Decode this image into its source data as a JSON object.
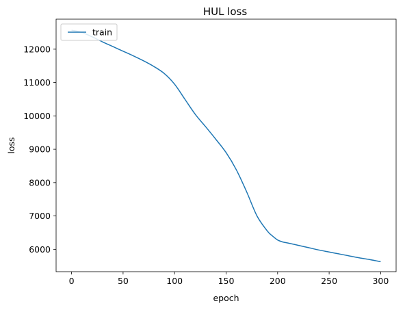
{
  "chart_data": {
    "type": "line",
    "title": "HUL loss",
    "xlabel": "epoch",
    "ylabel": "loss",
    "xlim": [
      -15,
      315
    ],
    "ylim": [
      5330,
      12900
    ],
    "xticks": [
      0,
      50,
      100,
      150,
      200,
      250,
      300
    ],
    "yticks": [
      6000,
      7000,
      8000,
      9000,
      10000,
      11000,
      12000
    ],
    "xtick_labels": [
      "0",
      "50",
      "100",
      "150",
      "200",
      "250",
      "300"
    ],
    "ytick_labels": [
      "6000",
      "7000",
      "8000",
      "9000",
      "10000",
      "11000",
      "12000"
    ],
    "grid": false,
    "legend": {
      "position": "upper-left",
      "entries": [
        "train"
      ]
    },
    "series": [
      {
        "name": "train",
        "color": "#1f77b4",
        "x": [
          0,
          10,
          20,
          30,
          40,
          50,
          60,
          70,
          80,
          90,
          100,
          110,
          120,
          130,
          140,
          150,
          160,
          170,
          180,
          190,
          195,
          200,
          205,
          210,
          220,
          230,
          240,
          250,
          260,
          270,
          280,
          290,
          300
        ],
        "y": [
          12570,
          12500,
          12370,
          12220,
          12080,
          11940,
          11800,
          11650,
          11480,
          11270,
          10950,
          10500,
          10050,
          9680,
          9300,
          8900,
          8380,
          7720,
          7000,
          6550,
          6400,
          6280,
          6220,
          6190,
          6120,
          6050,
          5980,
          5920,
          5860,
          5800,
          5740,
          5690,
          5630
        ]
      }
    ]
  }
}
